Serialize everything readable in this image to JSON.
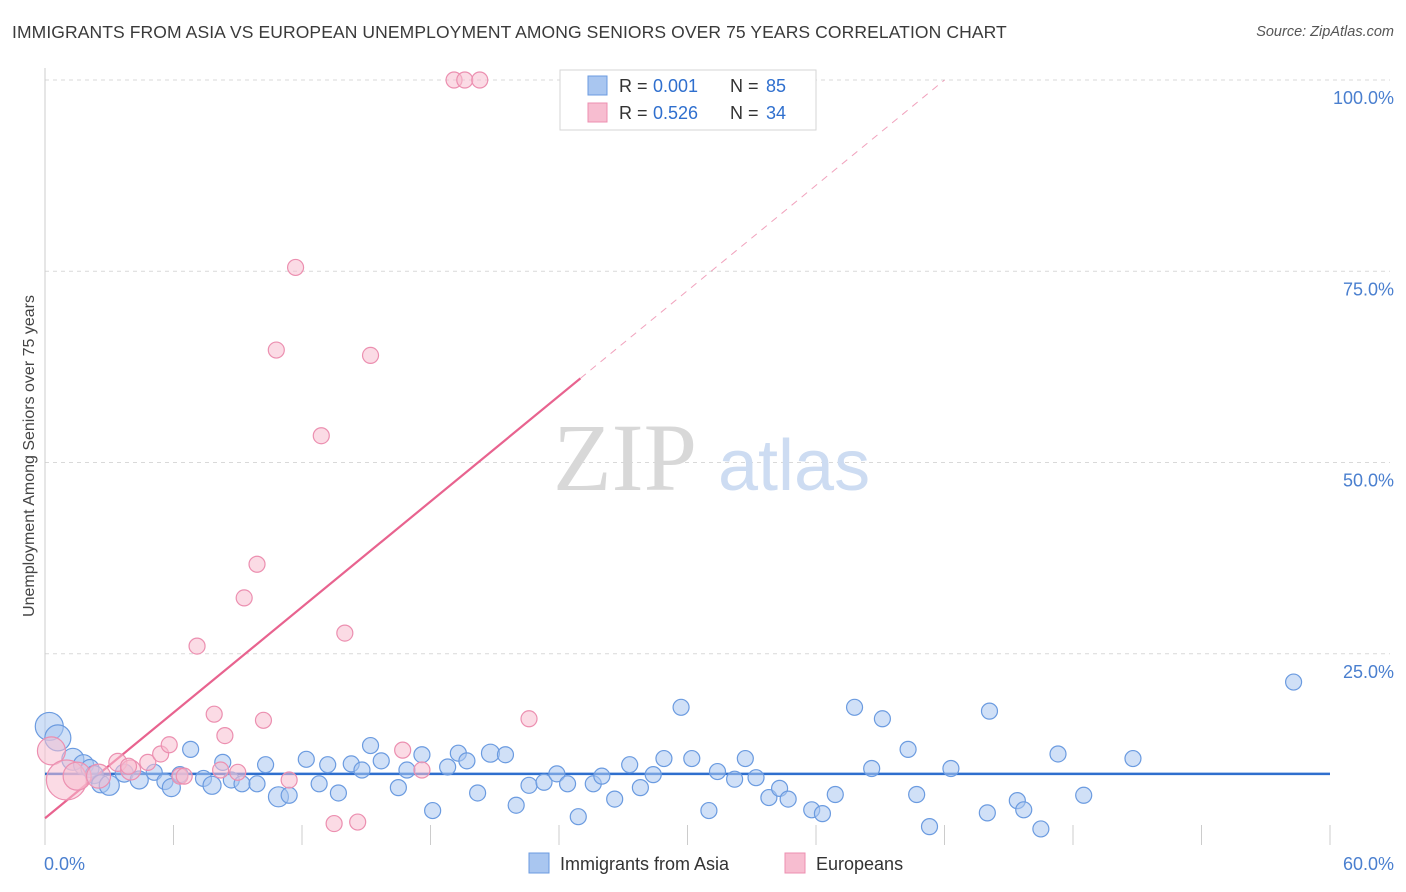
{
  "title": "IMMIGRANTS FROM ASIA VS EUROPEAN UNEMPLOYMENT AMONG SENIORS OVER 75 YEARS CORRELATION CHART",
  "source": "Source: ZipAtlas.com",
  "watermark": {
    "zip": "ZIP",
    "atlas": "atlas"
  },
  "colors": {
    "blue_fill": "#a9c6f0",
    "blue_stroke": "#6b9be0",
    "blue_line": "#2f6fce",
    "pink_fill": "#f7bdd0",
    "pink_stroke": "#ec8fb0",
    "pink_line": "#e8638f",
    "tick_text": "#4a7fcf",
    "grid": "#d9d9d9"
  },
  "legend": {
    "items": [
      {
        "r_label": "R =",
        "r_value": "0.001",
        "n_label": "N =",
        "n_value": "85"
      },
      {
        "r_label": "R =",
        "r_value": "0.526",
        "n_label": "N =",
        "n_value": "34"
      }
    ]
  },
  "bottom_legend": [
    "Immigrants from Asia",
    "Europeans"
  ],
  "chart_data": {
    "type": "scatter",
    "title": "IMMIGRANTS FROM ASIA VS EUROPEAN UNEMPLOYMENT AMONG SENIORS OVER 75 YEARS CORRELATION CHART",
    "xlabel": "",
    "ylabel": "Unemployment Among Seniors over 75 years",
    "xlim": [
      0,
      60
    ],
    "ylim": [
      0,
      105
    ],
    "x_tick_labels": [
      "0.0%",
      "60.0%"
    ],
    "y_ticks": [
      25,
      50,
      75,
      100
    ],
    "y_tick_labels": [
      "25.0%",
      "50.0%",
      "75.0%",
      "100.0%"
    ],
    "grid": true,
    "legend_position": "top-center",
    "series": [
      {
        "name": "Immigrants from Asia",
        "r": 0.001,
        "n": 85,
        "trend": {
          "x0": 0,
          "y0": 9.3,
          "x1": 60,
          "y1": 9.3
        },
        "points": [
          [
            0.2,
            15.5,
            14
          ],
          [
            0.6,
            14.0,
            13
          ],
          [
            1.3,
            11.2,
            11
          ],
          [
            1.8,
            10.5,
            10
          ],
          [
            2.1,
            10.0,
            9
          ],
          [
            2.3,
            9.2,
            9
          ],
          [
            2.6,
            8.0,
            9
          ],
          [
            3.0,
            7.8,
            10
          ],
          [
            3.7,
            9.4,
            9
          ],
          [
            4.4,
            8.5,
            9
          ],
          [
            5.1,
            9.5,
            8
          ],
          [
            5.6,
            8.3,
            8
          ],
          [
            5.9,
            7.5,
            9
          ],
          [
            6.3,
            9.2,
            8
          ],
          [
            6.8,
            12.5,
            8
          ],
          [
            7.4,
            8.7,
            8
          ],
          [
            7.8,
            7.8,
            9
          ],
          [
            8.3,
            10.8,
            8
          ],
          [
            8.7,
            8.5,
            8
          ],
          [
            9.2,
            8.0,
            8
          ],
          [
            9.9,
            8.0,
            8
          ],
          [
            10.3,
            10.5,
            8
          ],
          [
            10.9,
            6.3,
            10
          ],
          [
            11.4,
            6.5,
            8
          ],
          [
            12.2,
            11.2,
            8
          ],
          [
            12.8,
            8.0,
            8
          ],
          [
            13.2,
            10.5,
            8
          ],
          [
            13.7,
            6.8,
            8
          ],
          [
            14.3,
            10.6,
            8
          ],
          [
            14.8,
            9.8,
            8
          ],
          [
            15.2,
            13.0,
            8
          ],
          [
            15.7,
            11.0,
            8
          ],
          [
            16.5,
            7.5,
            8
          ],
          [
            16.9,
            9.8,
            8
          ],
          [
            17.6,
            11.8,
            8
          ],
          [
            18.1,
            4.5,
            8
          ],
          [
            18.8,
            10.2,
            8
          ],
          [
            19.3,
            12.0,
            8
          ],
          [
            19.7,
            11.0,
            8
          ],
          [
            20.2,
            6.8,
            8
          ],
          [
            20.8,
            12.0,
            9
          ],
          [
            21.5,
            11.8,
            8
          ],
          [
            22.0,
            5.2,
            8
          ],
          [
            22.6,
            7.8,
            8
          ],
          [
            23.3,
            8.2,
            8
          ],
          [
            23.9,
            9.3,
            8
          ],
          [
            24.4,
            8.0,
            8
          ],
          [
            24.9,
            3.7,
            8
          ],
          [
            25.6,
            8.0,
            8
          ],
          [
            26.0,
            9.0,
            8
          ],
          [
            26.6,
            6.0,
            8
          ],
          [
            27.3,
            10.5,
            8
          ],
          [
            27.8,
            7.5,
            8
          ],
          [
            28.4,
            9.2,
            8
          ],
          [
            28.9,
            11.3,
            8
          ],
          [
            29.7,
            18.0,
            8
          ],
          [
            30.2,
            11.3,
            8
          ],
          [
            31.0,
            4.5,
            8
          ],
          [
            31.4,
            9.6,
            8
          ],
          [
            32.2,
            8.6,
            8
          ],
          [
            32.7,
            11.3,
            8
          ],
          [
            33.2,
            8.8,
            8
          ],
          [
            33.8,
            6.2,
            8
          ],
          [
            34.3,
            7.4,
            8
          ],
          [
            34.7,
            6.0,
            8
          ],
          [
            35.8,
            4.6,
            8
          ],
          [
            36.3,
            4.1,
            8
          ],
          [
            36.9,
            6.6,
            8
          ],
          [
            37.8,
            18.0,
            8
          ],
          [
            38.6,
            10.0,
            8
          ],
          [
            39.1,
            16.5,
            8
          ],
          [
            40.3,
            12.5,
            8
          ],
          [
            40.7,
            6.6,
            8
          ],
          [
            41.3,
            2.4,
            8
          ],
          [
            42.3,
            10.0,
            8
          ],
          [
            44.0,
            4.2,
            8
          ],
          [
            44.1,
            17.5,
            8
          ],
          [
            45.4,
            5.8,
            8
          ],
          [
            45.7,
            4.6,
            8
          ],
          [
            46.5,
            2.1,
            8
          ],
          [
            47.3,
            11.9,
            8
          ],
          [
            48.5,
            6.5,
            8
          ],
          [
            50.8,
            11.3,
            8
          ],
          [
            58.3,
            21.3,
            8
          ]
        ]
      },
      {
        "name": "Europeans",
        "r": 0.526,
        "n": 34,
        "trend": {
          "x0": 0,
          "y0": 3.5,
          "x1": 25,
          "y1": 61.0,
          "dashed_to_x": 42,
          "dashed_to_y": 100.0
        },
        "points": [
          [
            0.3,
            12.3,
            14
          ],
          [
            1.0,
            8.5,
            20
          ],
          [
            1.5,
            9.0,
            14
          ],
          [
            2.5,
            9.0,
            12
          ],
          [
            3.4,
            10.8,
            9
          ],
          [
            4.0,
            9.8,
            10
          ],
          [
            4.8,
            10.8,
            8
          ],
          [
            5.4,
            11.9,
            8
          ],
          [
            5.8,
            13.1,
            8
          ],
          [
            6.3,
            9.0,
            8
          ],
          [
            7.1,
            26.0,
            8
          ],
          [
            7.9,
            17.1,
            8
          ],
          [
            8.2,
            9.8,
            8
          ],
          [
            8.4,
            14.3,
            8
          ],
          [
            9.0,
            9.5,
            8
          ],
          [
            9.3,
            32.3,
            8
          ],
          [
            9.9,
            36.7,
            8
          ],
          [
            10.2,
            16.3,
            8
          ],
          [
            10.8,
            64.7,
            8
          ],
          [
            11.4,
            8.5,
            8
          ],
          [
            11.7,
            75.5,
            8
          ],
          [
            12.9,
            53.5,
            8
          ],
          [
            13.5,
            2.8,
            8
          ],
          [
            14.0,
            27.7,
            8
          ],
          [
            14.6,
            3.0,
            8
          ],
          [
            15.2,
            64.0,
            8
          ],
          [
            16.7,
            12.4,
            8
          ],
          [
            17.6,
            9.8,
            8
          ],
          [
            19.1,
            100.0,
            8
          ],
          [
            19.6,
            100.0,
            8
          ],
          [
            20.3,
            100.0,
            8
          ],
          [
            22.6,
            16.5,
            8
          ],
          [
            3.9,
            10.3,
            8
          ],
          [
            6.5,
            9.0,
            8
          ]
        ]
      }
    ]
  }
}
